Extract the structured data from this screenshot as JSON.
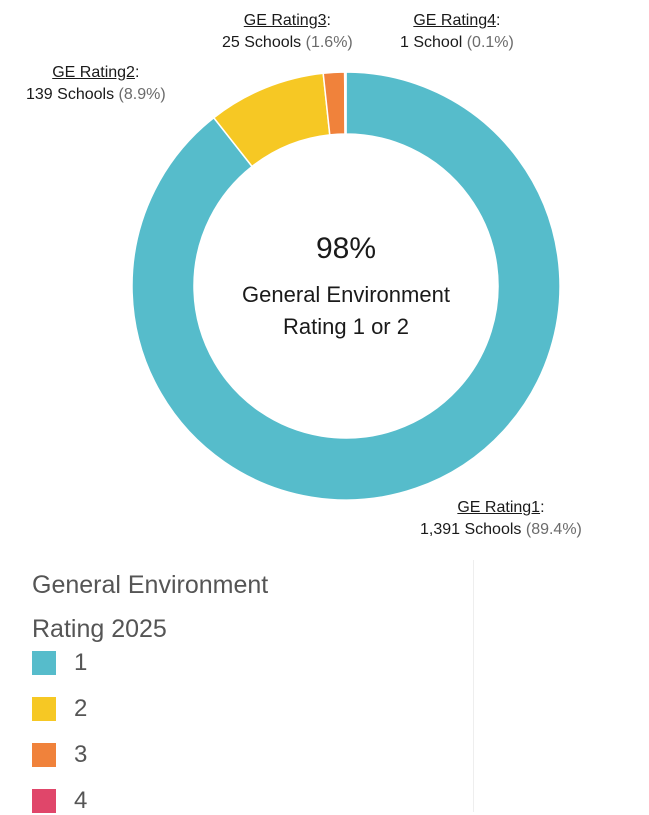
{
  "chart_data": {
    "type": "pie",
    "variant": "donut",
    "categories": [
      "1",
      "2",
      "3",
      "4"
    ],
    "values": [
      89.4,
      8.9,
      1.6,
      0.1
    ],
    "colors": [
      "#56bccb",
      "#f6c824",
      "#f0823b",
      "#e0466a"
    ],
    "labels": [
      {
        "head": "GE Rating1",
        "count": "1,391 Schools",
        "pct": "(89.4%)"
      },
      {
        "head": "GE Rating2",
        "count": "139 Schools",
        "pct": "(8.9%)"
      },
      {
        "head": "GE Rating3",
        "count": "25 Schools",
        "pct": "(1.6%)"
      },
      {
        "head": "GE Rating4",
        "count": "1 School",
        "pct": "(0.1%)"
      }
    ],
    "center": {
      "value": "98%",
      "line1": "General Environment",
      "line2": "Rating 1 or 2"
    },
    "legend": {
      "title_line1": "General Environment",
      "title_line2": "Rating 2025",
      "items": [
        "1",
        "2",
        "3",
        "4"
      ]
    }
  }
}
